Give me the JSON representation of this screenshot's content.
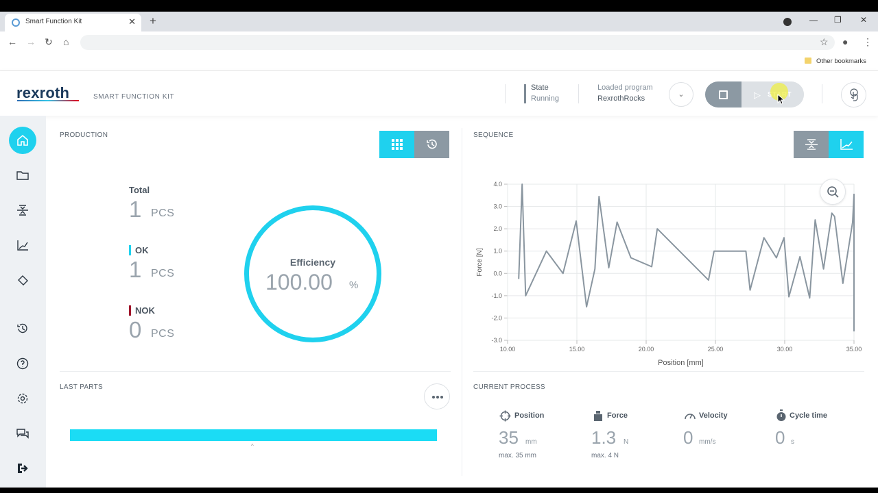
{
  "browser": {
    "tab_title": "Smart Function Kit",
    "bookmarks_label": "Other bookmarks"
  },
  "header": {
    "logo": "rexroth",
    "subtitle": "SMART FUNCTION KIT",
    "state_label": "State",
    "state_value": "Running",
    "program_label": "Loaded program",
    "program_value": "RexrothRocks",
    "start_label": "START"
  },
  "production": {
    "title": "PRODUCTION",
    "total": {
      "label": "Total",
      "value": "1",
      "unit": "PCS"
    },
    "ok": {
      "label": "OK",
      "value": "1",
      "unit": "PCS"
    },
    "nok": {
      "label": "NOK",
      "value": "0",
      "unit": "PCS"
    },
    "efficiency": {
      "label": "Efficiency",
      "value": "100.00",
      "unit": "%"
    }
  },
  "sequence": {
    "title": "SEQUENCE"
  },
  "last_parts": {
    "title": "LAST PARTS",
    "caret": "^"
  },
  "current_process": {
    "title": "CURRENT PROCESS",
    "position": {
      "label": "Position",
      "value": "35",
      "unit": "mm",
      "max": "max. 35 mm"
    },
    "force": {
      "label": "Force",
      "value": "1.3",
      "unit": "N",
      "max": "max. 4 N"
    },
    "velocity": {
      "label": "Velocity",
      "value": "0",
      "unit": "mm/s"
    },
    "cycle_time": {
      "label": "Cycle time",
      "value": "0",
      "unit": "s"
    }
  },
  "colors": {
    "accent": "#1fd1ee",
    "nok": "#a0152b",
    "line": "#8a96a0"
  },
  "chart_data": {
    "type": "line",
    "xlabel": "Position [mm]",
    "ylabel": "Force [N]",
    "xlim": [
      10,
      35
    ],
    "ylim": [
      -3,
      4
    ],
    "x_ticks": [
      "10.00",
      "15.00",
      "20.00",
      "25.00",
      "30.00",
      "35.00"
    ],
    "y_ticks": [
      "4.0",
      "3.0",
      "2.0",
      "1.0",
      "0.0",
      "-1.0",
      "-2.0",
      "-3.0"
    ],
    "grid": true,
    "series": [
      {
        "x": [
          10.8,
          11.05,
          11.3,
          12.8,
          14.0,
          14.95,
          15.7,
          16.3,
          16.6,
          17.3,
          17.9,
          18.9,
          20.4,
          20.8,
          24.5,
          24.9,
          27.2,
          27.5,
          28.5,
          29.4,
          29.95,
          30.3,
          31.1,
          31.8,
          32.2,
          32.8,
          33.4,
          33.6,
          34.2,
          34.9,
          35.0,
          35.0
        ],
        "y": [
          -0.25,
          4.0,
          -1.0,
          1.0,
          0.0,
          2.35,
          -1.5,
          0.2,
          3.45,
          0.25,
          2.3,
          0.7,
          0.3,
          2.0,
          -0.3,
          1.0,
          1.0,
          -0.75,
          1.6,
          0.7,
          1.6,
          -1.05,
          0.75,
          -1.1,
          2.4,
          0.2,
          2.7,
          2.55,
          -0.45,
          2.3,
          3.55,
          -2.6
        ]
      }
    ]
  }
}
